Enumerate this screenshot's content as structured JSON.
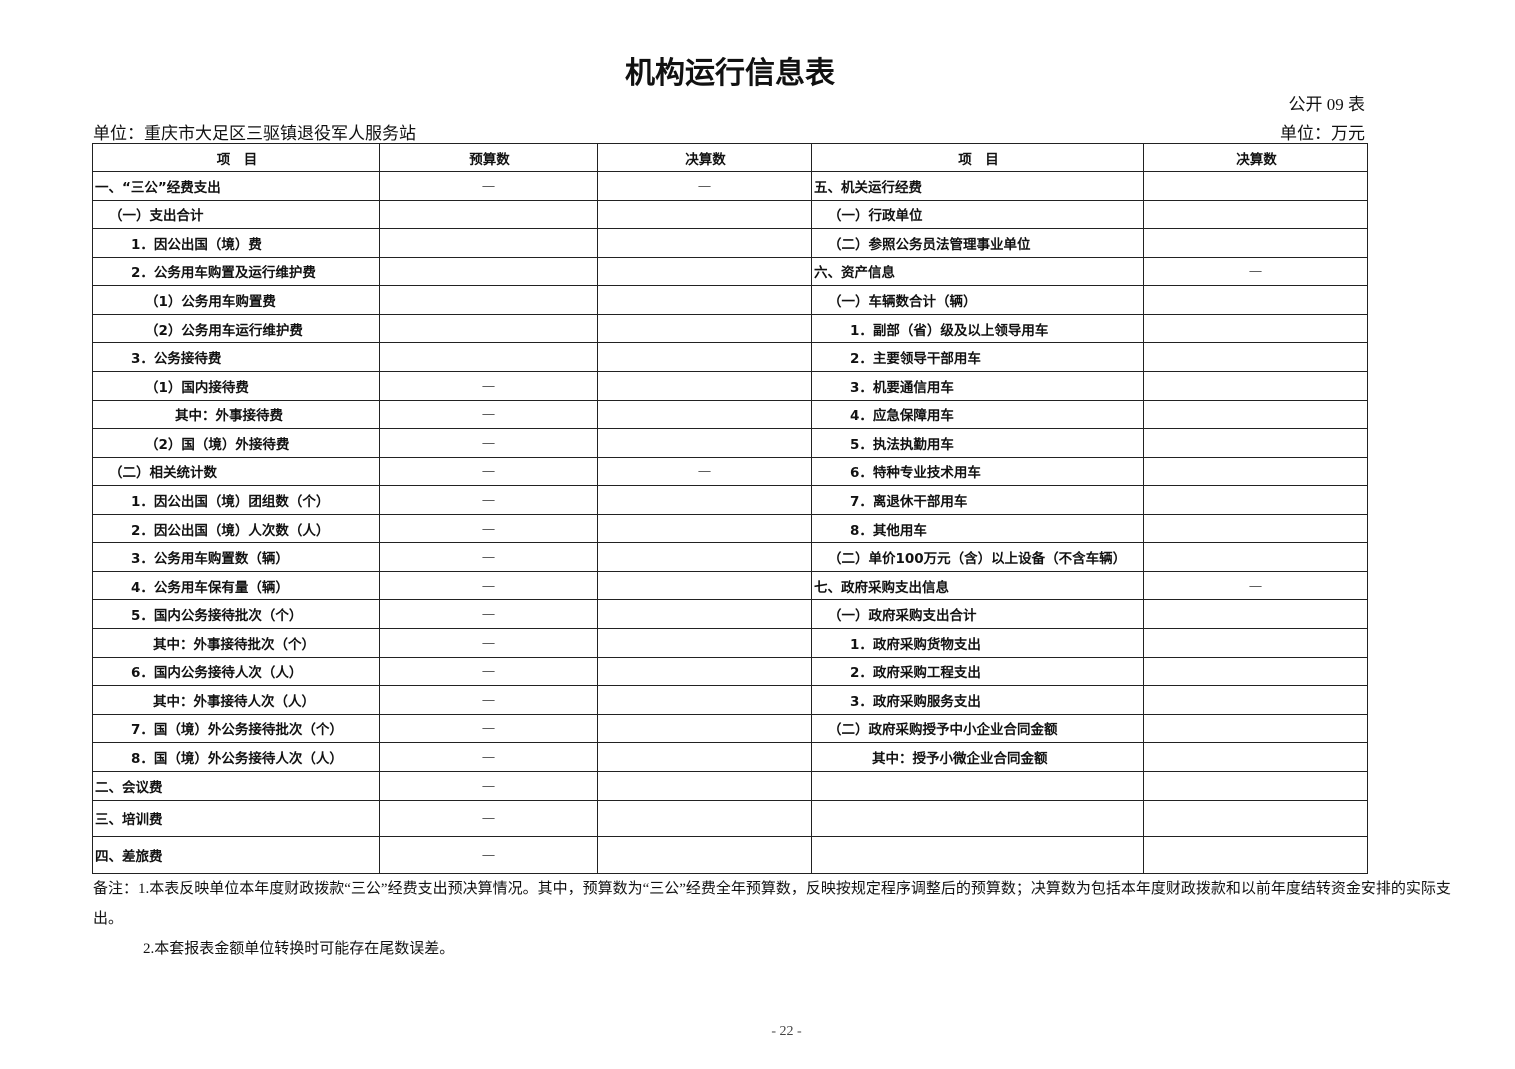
{
  "header": {
    "title": "机构运行信息表",
    "table_code": "公开 09 表",
    "unit_left": "单位：重庆市大足区三驱镇退役军人服务站",
    "unit_right": "单位：万元"
  },
  "table": {
    "columns": [
      "项　目",
      "预算数",
      "决算数",
      "项　目",
      "决算数"
    ],
    "rows": [
      [
        "一、“三公”经费支出",
        "—",
        "—",
        "五、机关运行经费",
        null
      ],
      [
        "（一）支出合计",
        null,
        null,
        "（一）行政单位",
        null
      ],
      [
        "1．因公出国（境）费",
        null,
        null,
        "（二）参照公务员法管理事业单位",
        null
      ],
      [
        "2．公务用车购置及运行维护费",
        null,
        null,
        "六、资产信息",
        "—"
      ],
      [
        "（1）公务用车购置费",
        null,
        null,
        "（一）车辆数合计（辆）",
        null
      ],
      [
        "（2）公务用车运行维护费",
        null,
        null,
        "1．副部（省）级及以上领导用车",
        null
      ],
      [
        "3．公务接待费",
        null,
        null,
        "2．主要领导干部用车",
        null
      ],
      [
        "（1）国内接待费",
        "—",
        null,
        "3．机要通信用车",
        null
      ],
      [
        "其中：外事接待费",
        "—",
        null,
        "4．应急保障用车",
        null
      ],
      [
        "（2）国（境）外接待费",
        "—",
        null,
        "5．执法执勤用车",
        null
      ],
      [
        "（二）相关统计数",
        "—",
        "—",
        "6．特种专业技术用车",
        null
      ],
      [
        "1．因公出国（境）团组数（个）",
        "—",
        null,
        "7．离退休干部用车",
        null
      ],
      [
        "2．因公出国（境）人次数（人）",
        "—",
        null,
        "8．其他用车",
        null
      ],
      [
        "3．公务用车购置数（辆）",
        "—",
        null,
        "（二）单价100万元（含）以上设备（不含车辆）",
        null
      ],
      [
        "4．公务用车保有量（辆）",
        "—",
        null,
        "七、政府采购支出信息",
        "—"
      ],
      [
        "5．国内公务接待批次（个）",
        "—",
        null,
        "（一）政府采购支出合计",
        null
      ],
      [
        "其中：外事接待批次（个）",
        "—",
        null,
        "1．政府采购货物支出",
        null
      ],
      [
        "6．国内公务接待人次（人）",
        "—",
        null,
        "2．政府采购工程支出",
        null
      ],
      [
        "其中：外事接待人次（人）",
        "—",
        null,
        "3．政府采购服务支出",
        null
      ],
      [
        "7．国（境）外公务接待批次（个）",
        "—",
        null,
        "（二）政府采购授予中小企业合同金额",
        null
      ],
      [
        "8．国（境）外公务接待人次（人）",
        "—",
        null,
        "其中：授予小微企业合同金额",
        null
      ],
      [
        "二、会议费",
        "—",
        null,
        null,
        null
      ],
      [
        "三、培训费",
        "—",
        null,
        null,
        null
      ],
      [
        "四、差旅费",
        "—",
        null,
        null,
        null
      ]
    ]
  },
  "notes": [
    "备注：1.本表反映单位本年度财政拨款“三公”经费支出预决算情况。其中，预算数为“三公”经费全年预算数，反映按规定程序调整后的预算数；决算数为包括本年度财政拨款和以前年度结转资金安排的实际支出。",
    "2.本套报表金额单位转换时可能存在尾数误差。"
  ],
  "footer": {
    "page_number": "- 22 -"
  }
}
